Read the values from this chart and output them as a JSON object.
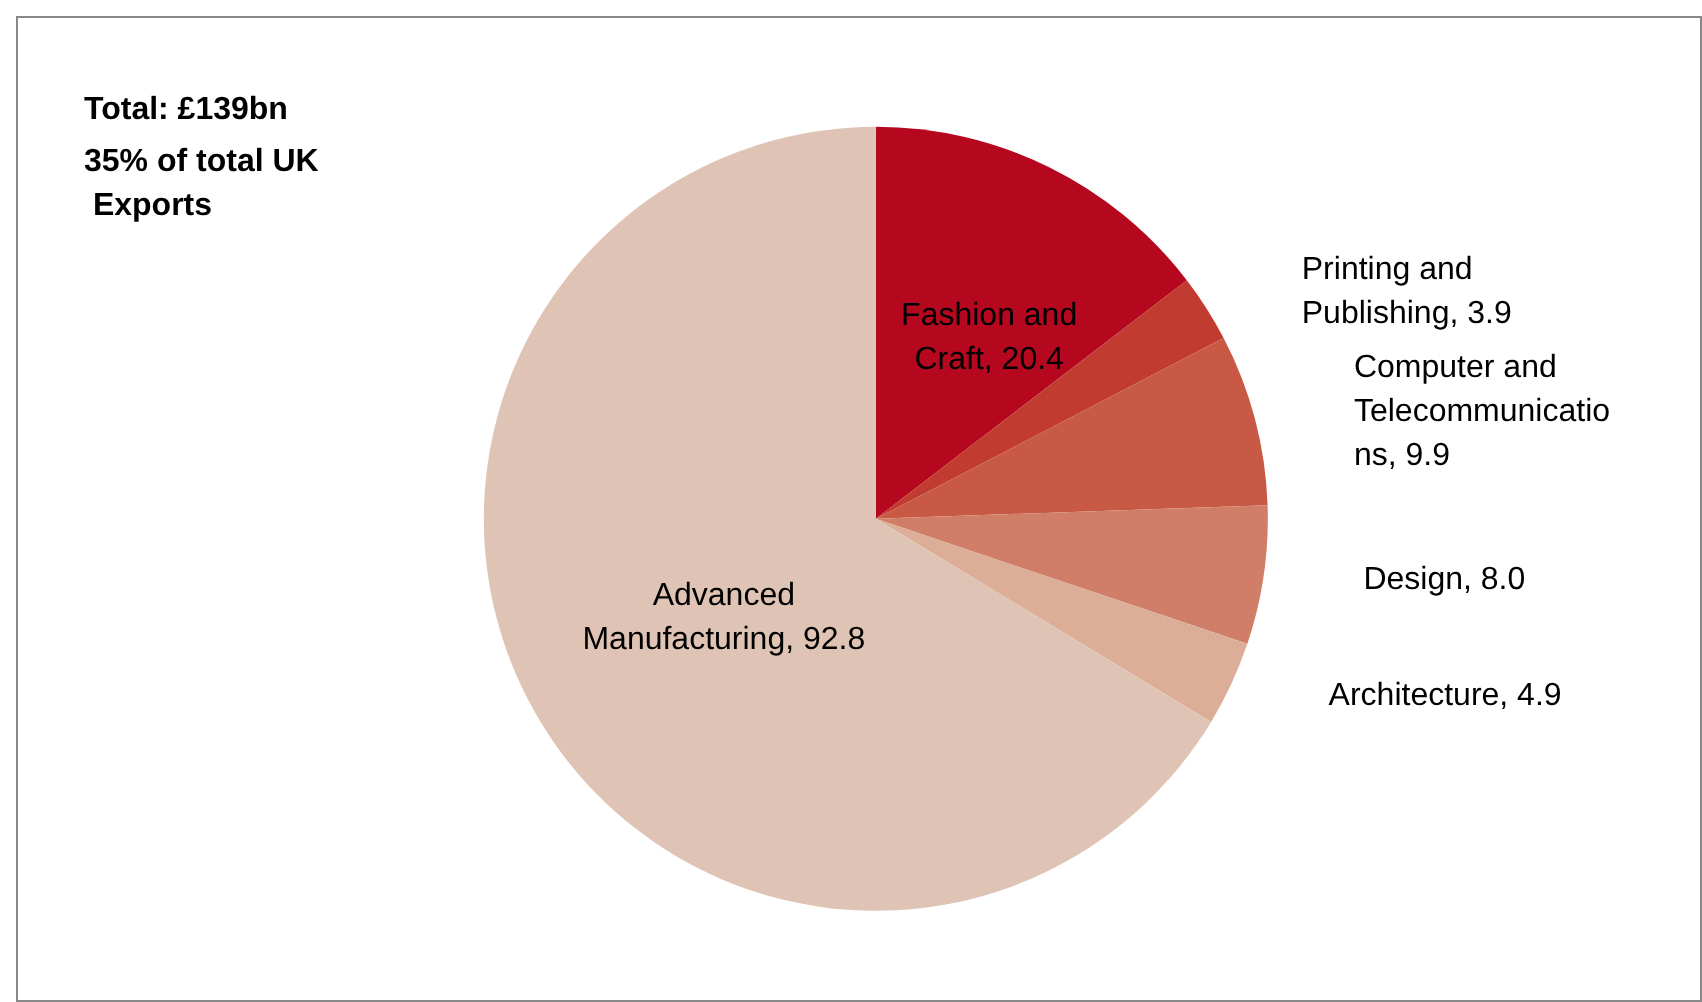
{
  "chart_data": {
    "type": "pie",
    "title": "Total: £139bn",
    "subtitle": "35% of total UK Exports",
    "categories": [
      "Fashion and Craft",
      "Printing and Publishing",
      "Computer and Telecommunications",
      "Design",
      "Architecture",
      "Advanced Manufacturing"
    ],
    "values": [
      20.4,
      3.9,
      9.9,
      8.0,
      4.9,
      92.8
    ],
    "value_labels": [
      "20.4",
      "3.9",
      "9.9",
      "8.0",
      "4.9",
      "92.8"
    ],
    "colors": [
      "#b5081e",
      "#c23b30",
      "#c85a45",
      "#d07e67",
      "#dcae98",
      "#dfc4b5"
    ],
    "legend": false
  }
}
